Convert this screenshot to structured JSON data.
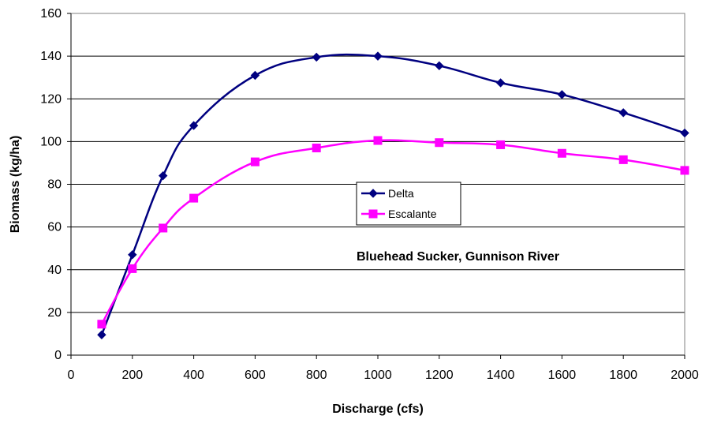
{
  "chart_data": {
    "type": "line",
    "title": "",
    "annotation": "Bluehead Sucker, Gunnison River",
    "xlabel": "Discharge (cfs)",
    "ylabel": "Biomass (kg/ha)",
    "xlim": [
      0,
      2000
    ],
    "ylim": [
      0,
      160
    ],
    "xticks": [
      0,
      200,
      400,
      600,
      800,
      1000,
      1200,
      1400,
      1600,
      1800,
      2000
    ],
    "yticks": [
      0,
      20,
      40,
      60,
      80,
      100,
      120,
      140,
      160
    ],
    "grid": "horizontal",
    "legend_position": "center",
    "series": [
      {
        "name": "Delta",
        "color": "#000080",
        "marker": "diamond",
        "x": [
          100,
          200,
          300,
          400,
          600,
          800,
          1000,
          1200,
          1400,
          1600,
          1800,
          2000
        ],
        "y": [
          9.5,
          47,
          84,
          107.5,
          131,
          139.5,
          140,
          135.5,
          127.5,
          122,
          113.5,
          104
        ]
      },
      {
        "name": "Escalante",
        "color": "#ff00ff",
        "marker": "square",
        "x": [
          100,
          200,
          300,
          400,
          600,
          800,
          1000,
          1200,
          1400,
          1600,
          1800,
          2000
        ],
        "y": [
          14.5,
          40.5,
          59.5,
          73.5,
          90.5,
          97,
          100.5,
          99.5,
          98.5,
          94.5,
          91.5,
          86.5
        ]
      }
    ]
  }
}
